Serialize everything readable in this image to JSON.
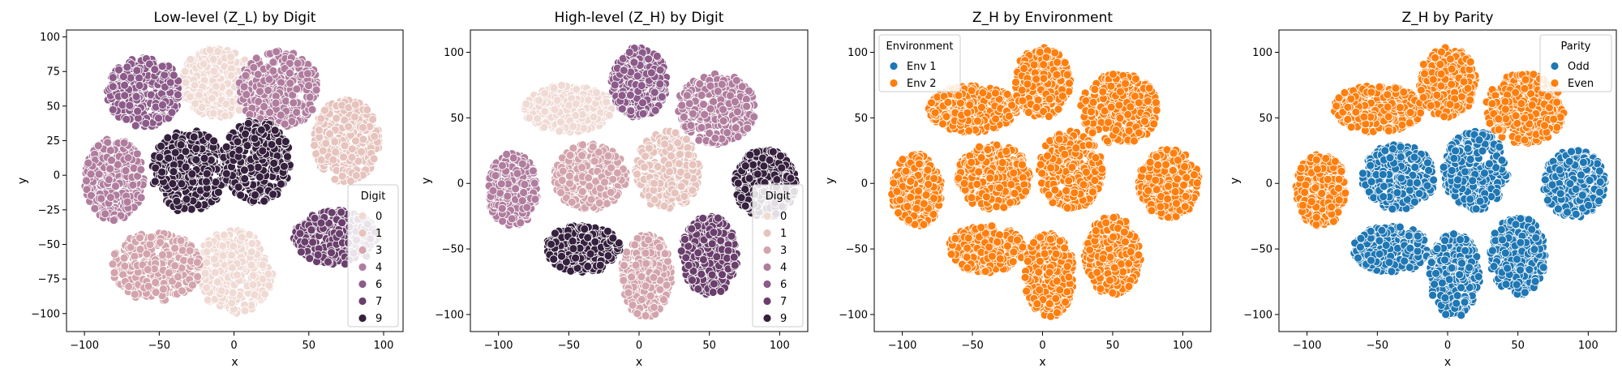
{
  "chart_data": [
    {
      "type": "scatter",
      "title": "Low-level (Z_L) by Digit",
      "xlabel": "x",
      "ylabel": "y",
      "xlim": [
        -112,
        113
      ],
      "ylim": [
        -113,
        105
      ],
      "xticks": [
        "−100",
        "−50",
        "0",
        "50",
        "100"
      ],
      "xtick_values": [
        -100,
        -50,
        0,
        50,
        100
      ],
      "yticks": [
        "100",
        "75",
        "50",
        "25",
        "0",
        "−25",
        "−50",
        "−75",
        "−100"
      ],
      "ytick_values": [
        100,
        75,
        50,
        25,
        0,
        -25,
        -50,
        -75,
        -100
      ],
      "grid": false,
      "legend": {
        "title": "Digit",
        "placement": "lower-right",
        "entries": [
          "0",
          "1",
          "3",
          "4",
          "6",
          "7",
          "9"
        ]
      },
      "series_colors": {
        "0": "#f0dad4",
        "1": "#e6c3bd",
        "3": "#d3a4ad",
        "4": "#b07d9e",
        "6": "#8c5b8a",
        "7": "#6a3f6c",
        "9": "#35203d"
      },
      "clusters": [
        {
          "label": "0",
          "cx": -10,
          "cy": 67,
          "rx": 26,
          "ry": 25
        },
        {
          "label": "0",
          "cx": 0,
          "cy": -70,
          "rx": 26,
          "ry": 30
        },
        {
          "label": "1",
          "cx": 75,
          "cy": 25,
          "rx": 22,
          "ry": 30
        },
        {
          "label": "3",
          "cx": -52,
          "cy": -66,
          "rx": 30,
          "ry": 25
        },
        {
          "label": "4",
          "cx": 30,
          "cy": 62,
          "rx": 27,
          "ry": 28
        },
        {
          "label": "4",
          "cx": -80,
          "cy": -3,
          "rx": 20,
          "ry": 30
        },
        {
          "label": "6",
          "cx": -60,
          "cy": 60,
          "rx": 25,
          "ry": 25
        },
        {
          "label": "7",
          "cx": 68,
          "cy": -45,
          "rx": 28,
          "ry": 20
        },
        {
          "label": "9",
          "cx": -30,
          "cy": 3,
          "rx": 25,
          "ry": 30
        },
        {
          "label": "9",
          "cx": 15,
          "cy": 10,
          "rx": 23,
          "ry": 30
        }
      ]
    },
    {
      "type": "scatter",
      "title": "High-level (Z_H) by Digit",
      "xlabel": "x",
      "ylabel": "y",
      "xlim": [
        -120,
        120
      ],
      "ylim": [
        -113,
        117
      ],
      "xticks": [
        "−100",
        "−50",
        "0",
        "50",
        "100"
      ],
      "xtick_values": [
        -100,
        -50,
        0,
        50,
        100
      ],
      "yticks": [
        "100",
        "50",
        "0",
        "−50",
        "−100"
      ],
      "ytick_values": [
        100,
        50,
        0,
        -50,
        -100
      ],
      "grid": false,
      "legend": {
        "title": "Digit",
        "placement": "lower-right",
        "entries": [
          "0",
          "1",
          "3",
          "4",
          "6",
          "7",
          "9"
        ]
      },
      "series_colors": {
        "0": "#f0dad4",
        "1": "#e6c3bd",
        "3": "#d3a4ad",
        "4": "#b07d9e",
        "6": "#8c5b8a",
        "7": "#6a3f6c",
        "9": "#35203d"
      },
      "clusters": [
        {
          "label": "0",
          "cx": -50,
          "cy": 57,
          "rx": 32,
          "ry": 18
        },
        {
          "label": "1",
          "cx": 20,
          "cy": 10,
          "rx": 23,
          "ry": 30
        },
        {
          "label": "3",
          "cx": -35,
          "cy": 5,
          "rx": 26,
          "ry": 25
        },
        {
          "label": "3",
          "cx": 5,
          "cy": -70,
          "rx": 18,
          "ry": 32
        },
        {
          "label": "4",
          "cx": 55,
          "cy": 57,
          "rx": 28,
          "ry": 27
        },
        {
          "label": "4",
          "cx": -90,
          "cy": -5,
          "rx": 18,
          "ry": 28
        },
        {
          "label": "6",
          "cx": 0,
          "cy": 77,
          "rx": 20,
          "ry": 27
        },
        {
          "label": "7",
          "cx": 50,
          "cy": -55,
          "rx": 20,
          "ry": 30
        },
        {
          "label": "9",
          "cx": -40,
          "cy": -50,
          "rx": 27,
          "ry": 18
        },
        {
          "label": "9",
          "cx": 90,
          "cy": 0,
          "rx": 22,
          "ry": 26
        }
      ]
    },
    {
      "type": "scatter",
      "title": "Z_H by Environment",
      "xlabel": "x",
      "ylabel": "y",
      "xlim": [
        -120,
        120
      ],
      "ylim": [
        -113,
        117
      ],
      "xticks": [
        "−100",
        "−50",
        "0",
        "50",
        "100"
      ],
      "xtick_values": [
        -100,
        -50,
        0,
        50,
        100
      ],
      "yticks": [
        "100",
        "50",
        "0",
        "−50",
        "−100"
      ],
      "ytick_values": [
        100,
        50,
        0,
        -50,
        -100
      ],
      "grid": false,
      "legend": {
        "title": "Environment",
        "placement": "top-left",
        "entries": [
          "Env 1",
          "Env 2"
        ]
      },
      "series_colors": {
        "Env 1": "#1f77b4",
        "Env 2": "#ff7f0e"
      },
      "clusters": [
        {
          "label": "Env 2",
          "cx": -50,
          "cy": 57,
          "rx": 32,
          "ry": 18
        },
        {
          "label": "Env 2",
          "cx": 0,
          "cy": 77,
          "rx": 20,
          "ry": 27
        },
        {
          "label": "Env 2",
          "cx": 55,
          "cy": 57,
          "rx": 28,
          "ry": 27
        },
        {
          "label": "Env 2",
          "cx": -35,
          "cy": 5,
          "rx": 26,
          "ry": 25
        },
        {
          "label": "Env 2",
          "cx": 20,
          "cy": 10,
          "rx": 23,
          "ry": 30
        },
        {
          "label": "Env 2",
          "cx": -90,
          "cy": -5,
          "rx": 18,
          "ry": 28
        },
        {
          "label": "Env 2",
          "cx": 90,
          "cy": 0,
          "rx": 22,
          "ry": 26
        },
        {
          "label": "Env 2",
          "cx": -40,
          "cy": -50,
          "rx": 27,
          "ry": 18
        },
        {
          "label": "Env 2",
          "cx": 5,
          "cy": -70,
          "rx": 18,
          "ry": 32
        },
        {
          "label": "Env 2",
          "cx": 50,
          "cy": -55,
          "rx": 20,
          "ry": 30
        }
      ]
    },
    {
      "type": "scatter",
      "title": "Z_H by Parity",
      "xlabel": "x",
      "ylabel": "y",
      "xlim": [
        -120,
        120
      ],
      "ylim": [
        -113,
        117
      ],
      "xticks": [
        "−100",
        "−50",
        "0",
        "50",
        "100"
      ],
      "xtick_values": [
        -100,
        -50,
        0,
        50,
        100
      ],
      "yticks": [
        "100",
        "50",
        "0",
        "−50",
        "−100"
      ],
      "ytick_values": [
        100,
        50,
        0,
        -50,
        -100
      ],
      "grid": false,
      "legend": {
        "title": "Parity",
        "placement": "top-right",
        "entries": [
          "Odd",
          "Even"
        ]
      },
      "series_colors": {
        "Odd": "#1f77b4",
        "Even": "#ff7f0e"
      },
      "clusters": [
        {
          "label": "Even",
          "cx": -50,
          "cy": 57,
          "rx": 32,
          "ry": 18
        },
        {
          "label": "Even",
          "cx": 0,
          "cy": 77,
          "rx": 20,
          "ry": 27
        },
        {
          "label": "Even",
          "cx": 55,
          "cy": 57,
          "rx": 28,
          "ry": 27
        },
        {
          "label": "Odd",
          "cx": -35,
          "cy": 5,
          "rx": 26,
          "ry": 25
        },
        {
          "label": "Odd",
          "cx": 20,
          "cy": 10,
          "rx": 23,
          "ry": 30
        },
        {
          "label": "Even",
          "cx": -90,
          "cy": -5,
          "rx": 18,
          "ry": 28
        },
        {
          "label": "Odd",
          "cx": 90,
          "cy": 0,
          "rx": 22,
          "ry": 26
        },
        {
          "label": "Odd",
          "cx": -40,
          "cy": -50,
          "rx": 27,
          "ry": 18
        },
        {
          "label": "Odd",
          "cx": 5,
          "cy": -70,
          "rx": 18,
          "ry": 32
        },
        {
          "label": "Odd",
          "cx": 50,
          "cy": -55,
          "rx": 20,
          "ry": 30
        }
      ]
    }
  ]
}
